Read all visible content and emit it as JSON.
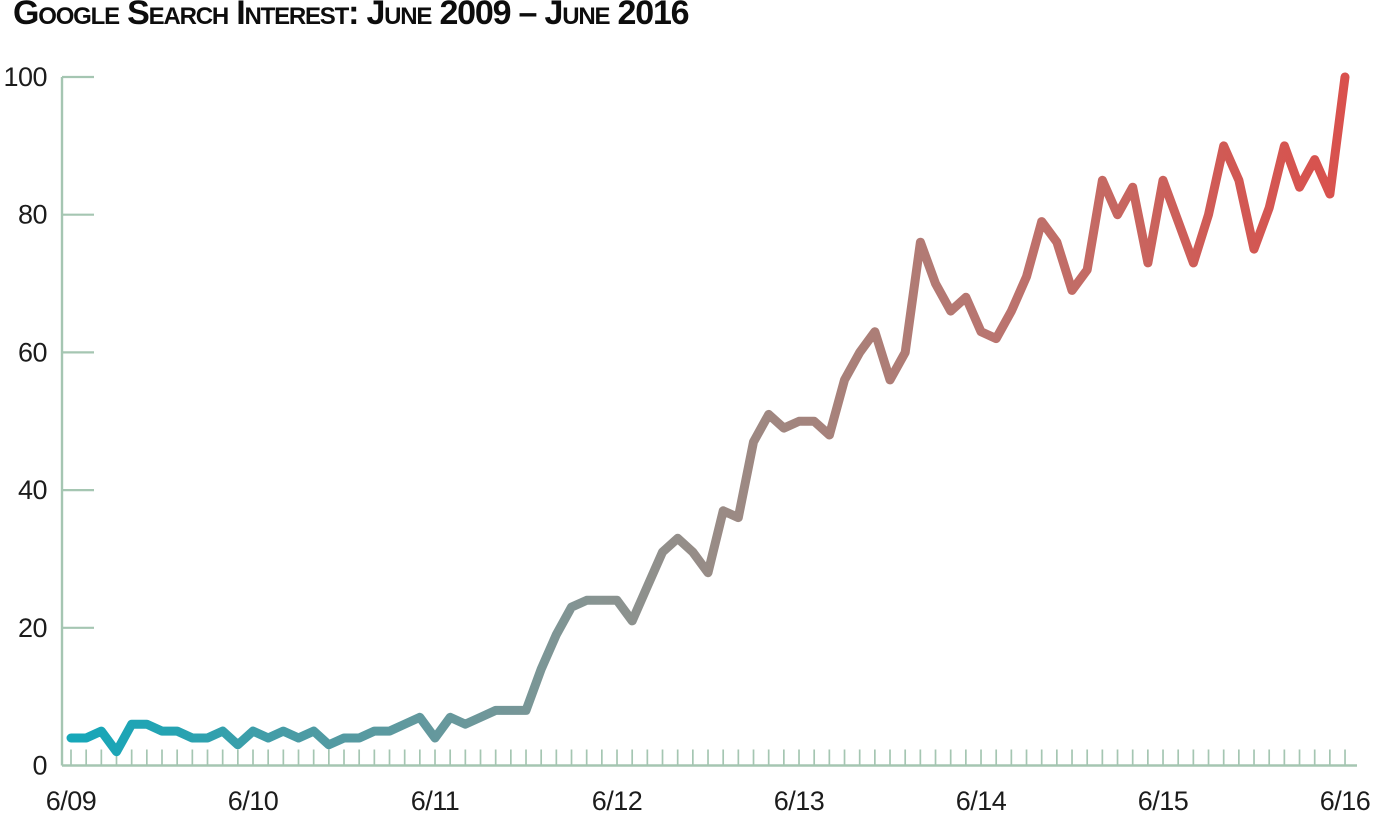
{
  "header": {
    "title": "Google Search Interest: June 2009 – June 2016"
  },
  "chart_data": {
    "type": "line",
    "title": "Google Search Interest: June 2009 – June 2016",
    "x_unit": "month",
    "x_start": "6/09",
    "x_end": "6/16",
    "x_year_labels": [
      "6/09",
      "6/10",
      "6/11",
      "6/12",
      "6/13",
      "6/14",
      "6/15",
      "6/16"
    ],
    "x_year_label_month_index": [
      0,
      12,
      24,
      36,
      48,
      60,
      72,
      84
    ],
    "monthly_values": [
      4,
      4,
      5,
      2,
      6,
      6,
      5,
      5,
      4,
      4,
      5,
      3,
      5,
      4,
      5,
      4,
      5,
      3,
      4,
      4,
      5,
      5,
      6,
      7,
      4,
      7,
      6,
      7,
      8,
      8,
      8,
      14,
      19,
      23,
      24,
      24,
      24,
      21,
      26,
      31,
      33,
      31,
      28,
      37,
      36,
      47,
      51,
      49,
      50,
      50,
      48,
      56,
      60,
      63,
      56,
      60,
      76,
      70,
      66,
      68,
      63,
      62,
      66,
      71,
      79,
      76,
      69,
      72,
      85,
      80,
      84,
      73,
      85,
      79,
      73,
      80,
      90,
      85,
      75,
      81,
      90,
      84,
      88,
      83,
      100
    ],
    "ylim": [
      0,
      100
    ],
    "y_ticks": [
      0,
      20,
      40,
      60,
      80,
      100
    ],
    "grid": "ticks-only",
    "legend": "none",
    "colors": {
      "axis": "#a5c6b2",
      "text": "#1c1c1c",
      "line_gradient": [
        {
          "offset": 0.0,
          "color": "#16a7b9"
        },
        {
          "offset": 0.08,
          "color": "#25a3b2"
        },
        {
          "offset": 0.18,
          "color": "#4c9ba4"
        },
        {
          "offset": 0.3,
          "color": "#68989c"
        },
        {
          "offset": 0.41,
          "color": "#879492"
        },
        {
          "offset": 0.52,
          "color": "#9b8a84"
        },
        {
          "offset": 0.63,
          "color": "#ac7e77"
        },
        {
          "offset": 0.72,
          "color": "#b97570"
        },
        {
          "offset": 0.8,
          "color": "#c46a64"
        },
        {
          "offset": 0.9,
          "color": "#d05a55"
        },
        {
          "offset": 1.0,
          "color": "#d9514d"
        }
      ]
    }
  }
}
